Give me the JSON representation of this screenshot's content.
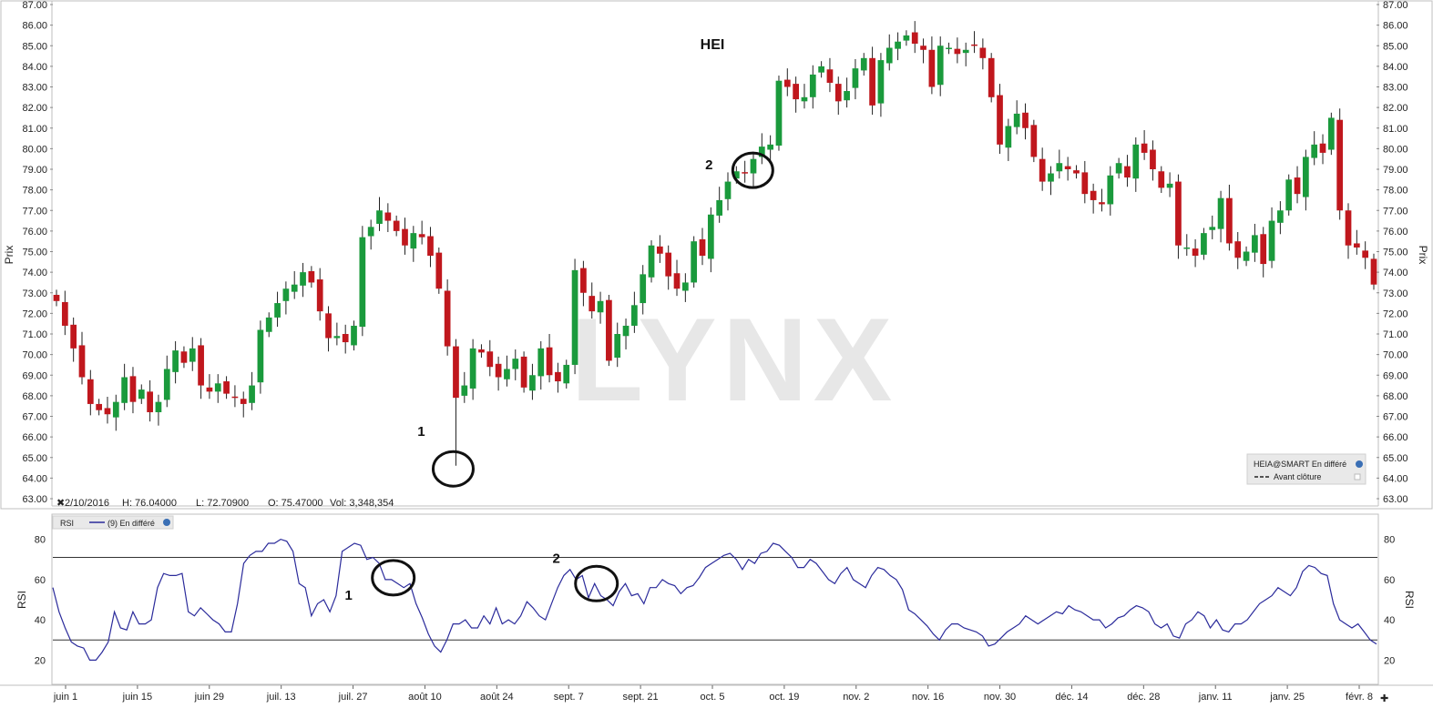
{
  "colors": {
    "up": "#1a9a3c",
    "down": "#c0171d",
    "rsi_line": "#2b2b9b",
    "watermark": "#d8d8d8",
    "circle": "#111111"
  },
  "watermark_text": "LYNX",
  "info_bar": {
    "date": "2/10/2016",
    "high": "H: 76.04000",
    "low": "L: 72.70900",
    "open": "O: 75.47000",
    "volume": "Vol: 3,348,354"
  },
  "legend": {
    "symbol": "HEIA@SMART En différé",
    "line": "Avant clôture"
  },
  "rsi_legend": {
    "name": "RSI",
    "line": "(9) En différé"
  },
  "chart_data": [
    {
      "type": "candlestick",
      "title": "HEI",
      "ylabel": "Prix",
      "ylim": [
        63,
        87
      ],
      "yticks": [
        "63.00",
        "64.00",
        "65.00",
        "66.00",
        "67.00",
        "68.00",
        "69.00",
        "70.00",
        "71.00",
        "72.00",
        "73.00",
        "74.00",
        "75.00",
        "76.00",
        "77.00",
        "78.00",
        "79.00",
        "80.00",
        "81.00",
        "82.00",
        "83.00",
        "84.00",
        "85.00",
        "86.00",
        "87.00"
      ],
      "x_ticks": [
        "juin 1",
        "juin 15",
        "juin 29",
        "juil. 13",
        "juil. 27",
        "août 10",
        "août 24",
        "sept. 7",
        "sept. 21",
        "oct. 5",
        "oct. 19",
        "nov. 2",
        "nov. 16",
        "nov. 30",
        "déc. 14",
        "déc. 28",
        "janv. 11",
        "janv. 25",
        "févr. 8"
      ],
      "close": [
        72.6,
        71.4,
        70.3,
        68.9,
        67.6,
        67.3,
        67.1,
        67.7,
        68.9,
        67.7,
        68.3,
        67.2,
        67.7,
        69.3,
        70.2,
        69.6,
        70.3,
        68.5,
        68.2,
        68.6,
        68.1,
        67.9,
        67.6,
        68.5,
        71.2,
        71.8,
        72.5,
        73.2,
        73.4,
        74.0,
        73.5,
        72.1,
        70.8,
        70.9,
        70.6,
        71.4,
        75.7,
        76.2,
        77.0,
        76.5,
        76.0,
        75.3,
        75.9,
        75.7,
        74.8,
        73.2,
        70.4,
        67.9,
        68.5,
        70.3,
        70.1,
        69.4,
        68.9,
        69.3,
        69.8,
        68.4,
        69.0,
        70.3,
        69.0,
        68.7,
        69.5,
        74.1,
        73.0,
        72.1,
        72.6,
        69.7,
        71.0,
        71.4,
        72.4,
        73.9,
        75.3,
        74.9,
        73.8,
        73.2,
        73.5,
        75.5,
        74.8,
        76.8,
        77.5,
        78.4,
        78.9,
        78.8,
        79.5,
        80.1,
        80.2,
        83.3,
        83.0,
        82.4,
        82.5,
        83.6,
        84.0,
        83.2,
        82.3,
        82.8,
        83.9,
        84.4,
        82.1,
        84.3,
        84.9,
        85.2,
        85.5,
        85.1,
        84.8,
        83.0,
        85.0,
        84.9,
        84.6,
        84.8,
        85.0,
        84.4,
        82.5,
        80.2,
        81.1,
        81.7,
        81.0,
        79.6,
        78.4,
        78.8,
        79.3,
        79.0,
        78.8,
        77.8,
        77.5,
        77.3,
        78.7,
        79.3,
        78.6,
        80.2,
        79.8,
        79.0,
        78.1,
        78.3,
        75.3,
        75.2,
        74.8,
        75.9,
        76.2,
        77.6,
        75.4,
        74.7,
        75.0,
        75.8,
        74.4,
        76.5,
        77.0,
        78.5,
        77.8,
        79.6,
        80.2,
        79.8,
        81.5,
        77.0,
        75.3,
        75.2,
        74.7,
        73.4
      ],
      "annotations": [
        {
          "label": "1",
          "index": 47
        },
        {
          "label": "2",
          "index": 80
        }
      ]
    },
    {
      "type": "line",
      "ylabel": "RSI",
      "ylim": [
        8,
        92
      ],
      "yticks": [
        "20",
        "40",
        "60",
        "80"
      ],
      "reference_lines": [
        71,
        30
      ],
      "values": [
        56,
        44,
        36,
        29,
        27,
        26,
        20,
        20,
        24,
        29,
        44,
        36,
        35,
        44,
        38,
        38,
        40,
        56,
        63,
        62,
        62,
        63,
        44,
        42,
        46,
        43,
        40,
        38,
        34,
        34,
        48,
        68,
        72,
        74,
        74,
        78,
        78,
        80,
        79,
        74,
        58,
        56,
        42,
        48,
        50,
        44,
        52,
        74,
        76,
        78,
        77,
        70,
        71,
        68,
        60,
        60,
        58,
        56,
        58,
        48,
        41,
        33,
        27,
        24,
        30,
        38,
        38,
        40,
        36,
        36,
        42,
        38,
        46,
        38,
        40,
        38,
        42,
        49,
        46,
        42,
        40,
        48,
        56,
        62,
        65,
        60,
        62,
        51,
        58,
        52,
        50,
        47,
        54,
        58,
        52,
        53,
        48,
        56,
        56,
        60,
        58,
        57,
        53,
        56,
        57,
        61,
        66,
        68,
        70,
        72,
        73,
        70,
        65,
        70,
        68,
        73,
        74,
        78,
        77,
        74,
        71,
        66,
        66,
        70,
        68,
        64,
        60,
        58,
        63,
        66,
        60,
        58,
        56,
        62,
        66,
        65,
        62,
        60,
        55,
        45,
        43,
        40,
        37,
        33,
        30,
        35,
        38,
        38,
        36,
        35,
        34,
        32,
        27,
        28,
        31,
        34,
        36,
        38,
        42,
        40,
        38,
        40,
        42,
        44,
        43,
        47,
        45,
        44,
        42,
        40,
        40,
        36,
        38,
        41,
        42,
        45,
        47,
        46,
        44,
        38,
        36,
        38,
        32,
        31,
        38,
        40,
        44,
        42,
        36,
        40,
        35,
        34,
        38,
        38,
        40,
        44,
        48,
        50,
        52,
        56,
        54,
        52,
        56,
        64,
        67,
        66,
        63,
        62,
        48,
        40,
        38,
        36,
        38,
        34,
        30,
        28
      ],
      "annotations": [
        {
          "label": "1",
          "index": 55
        },
        {
          "label": "2",
          "index": 88
        }
      ]
    }
  ]
}
